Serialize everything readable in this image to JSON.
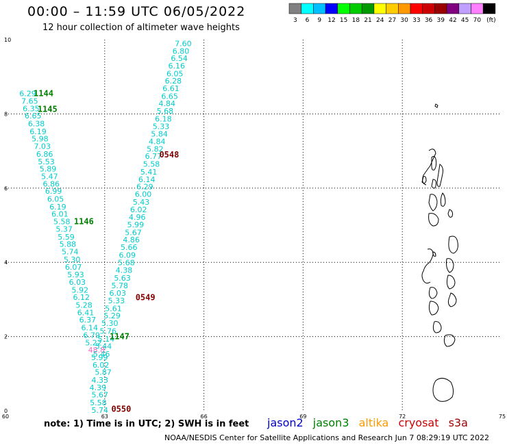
{
  "header": {
    "title": "00:00 – 11:59 UTC 06/05/2022",
    "subtitle": "12 hour collection of altimeter wave heights"
  },
  "colorbar": {
    "unit": "(ft)",
    "bins": [
      {
        "label": "3",
        "color": "#808080"
      },
      {
        "label": "6",
        "color": "#00ffff"
      },
      {
        "label": "9",
        "color": "#00bfff"
      },
      {
        "label": "12",
        "color": "#0000ff"
      },
      {
        "label": "15",
        "color": "#00ff00"
      },
      {
        "label": "18",
        "color": "#00cc00"
      },
      {
        "label": "21",
        "color": "#009900"
      },
      {
        "label": "24",
        "color": "#ffff00"
      },
      {
        "label": "27",
        "color": "#ffcc00"
      },
      {
        "label": "30",
        "color": "#ff9900"
      },
      {
        "label": "33",
        "color": "#ff0000"
      },
      {
        "label": "36",
        "color": "#cc0000"
      },
      {
        "label": "39",
        "color": "#990000"
      },
      {
        "label": "42",
        "color": "#800080"
      },
      {
        "label": "45",
        "color": "#bfa0ff"
      },
      {
        "label": "70",
        "color": "#ff80ff"
      },
      {
        "label": "",
        "color": "#000000"
      }
    ]
  },
  "axes": {
    "x": {
      "min": 60,
      "max": 75,
      "ticks": [
        60,
        63,
        66,
        69,
        72,
        75
      ],
      "tick_labels": [
        "60",
        "63",
        "66",
        "69",
        "72",
        "75"
      ]
    },
    "y": {
      "min": 0,
      "max": 10,
      "ticks": [
        0,
        2,
        4,
        6,
        8,
        10
      ],
      "tick_labels": [
        "0",
        "2",
        "4",
        "6",
        "8",
        "10"
      ]
    },
    "grid": true
  },
  "chart_data": {
    "type": "scatter",
    "tracks": [
      {
        "satellite": "jason3",
        "label": "1144",
        "label_lon": 60.85,
        "label_lat": 8.55,
        "label_color": "#008000",
        "values_color": "#00cccc",
        "points": [
          {
            "lon": 60.42,
            "lat": 8.55,
            "v": "6.29"
          },
          {
            "lon": 60.48,
            "lat": 8.35,
            "v": "7.65"
          },
          {
            "lon": 60.52,
            "lat": 8.15,
            "v": "6.35"
          }
        ]
      },
      {
        "satellite": "jason3",
        "label": "1145",
        "label_lon": 60.97,
        "label_lat": 8.13,
        "label_color": "#008000",
        "values_color": "#00cccc",
        "points": [
          {
            "lon": 60.58,
            "lat": 7.95,
            "v": "6.65"
          },
          {
            "lon": 60.68,
            "lat": 7.74,
            "v": "6.38"
          },
          {
            "lon": 60.73,
            "lat": 7.53,
            "v": "6.19"
          },
          {
            "lon": 60.79,
            "lat": 7.33,
            "v": "5.98"
          },
          {
            "lon": 60.86,
            "lat": 7.13,
            "v": "7.03"
          },
          {
            "lon": 60.93,
            "lat": 6.92,
            "v": "6.86"
          },
          {
            "lon": 60.98,
            "lat": 6.72,
            "v": "5.53"
          },
          {
            "lon": 61.03,
            "lat": 6.52,
            "v": "5.89"
          },
          {
            "lon": 61.08,
            "lat": 6.32,
            "v": "5.47"
          },
          {
            "lon": 61.13,
            "lat": 6.12,
            "v": "6.86"
          },
          {
            "lon": 61.2,
            "lat": 5.92,
            "v": "6.99"
          },
          {
            "lon": 61.26,
            "lat": 5.71,
            "v": "6.05"
          },
          {
            "lon": 61.33,
            "lat": 5.5,
            "v": "6.19"
          },
          {
            "lon": 61.39,
            "lat": 5.3,
            "v": "6.01"
          },
          {
            "lon": 61.45,
            "lat": 5.1,
            "v": "5.58"
          }
        ]
      },
      {
        "satellite": "jason3",
        "label": "1146",
        "label_lon": 62.07,
        "label_lat": 5.1,
        "label_color": "#008000",
        "values_color": "#00cccc",
        "points": [
          {
            "lon": 61.52,
            "lat": 4.9,
            "v": "5.37"
          },
          {
            "lon": 61.58,
            "lat": 4.69,
            "v": "5.59"
          },
          {
            "lon": 61.63,
            "lat": 4.49,
            "v": "5.88"
          },
          {
            "lon": 61.7,
            "lat": 4.29,
            "v": "5.74"
          },
          {
            "lon": 61.76,
            "lat": 4.08,
            "v": "5.30"
          },
          {
            "lon": 61.8,
            "lat": 3.87,
            "v": "6.07"
          },
          {
            "lon": 61.87,
            "lat": 3.67,
            "v": "5.93"
          },
          {
            "lon": 61.92,
            "lat": 3.47,
            "v": "6.03"
          },
          {
            "lon": 62.0,
            "lat": 3.26,
            "v": "5.92"
          },
          {
            "lon": 62.04,
            "lat": 3.06,
            "v": "6.12"
          },
          {
            "lon": 62.12,
            "lat": 2.85,
            "v": "5.28"
          },
          {
            "lon": 62.17,
            "lat": 2.65,
            "v": "6.41"
          },
          {
            "lon": 62.23,
            "lat": 2.45,
            "v": "6.37"
          },
          {
            "lon": 62.29,
            "lat": 2.24,
            "v": "6.14"
          },
          {
            "lon": 62.35,
            "lat": 2.04,
            "v": "6.79"
          }
        ]
      },
      {
        "satellite": "jason3",
        "label": "1147",
        "label_lon": 63.15,
        "label_lat": 2.0,
        "label_color": "#008000",
        "values_color": "#00cccc",
        "points": [
          {
            "lon": 62.41,
            "lat": 1.84,
            "v": "5.22"
          },
          {
            "lon": 62.59,
            "lat": 1.44,
            "v": "5.99"
          },
          {
            "lon": 62.63,
            "lat": 1.24,
            "v": "6.02"
          },
          {
            "lon": 62.7,
            "lat": 1.04,
            "v": "5.87"
          },
          {
            "lon": 62.6,
            "lat": 0.83,
            "v": "4.33"
          },
          {
            "lon": 62.54,
            "lat": 0.63,
            "v": "4.39"
          },
          {
            "lon": 62.6,
            "lat": 0.43,
            "v": "5.67"
          },
          {
            "lon": 62.55,
            "lat": 0.22,
            "v": "5.58"
          },
          {
            "lon": 62.6,
            "lat": 0.02,
            "v": "5.74"
          }
        ]
      },
      {
        "satellite": "altika",
        "label": "",
        "label_lon": 62.4,
        "label_lat": 1.64,
        "label_color": "#ff66cc",
        "values_color": "#ff66cc",
        "points": [
          {
            "lon": 62.5,
            "lat": 1.64,
            "v": "48.8"
          }
        ]
      },
      {
        "satellite": "cryosat",
        "label": "0548",
        "label_lon": 64.65,
        "label_lat": 6.9,
        "label_color": "#800000",
        "values_color": "#00cccc",
        "points": [
          {
            "lon": 65.12,
            "lat": 9.9,
            "v": "7.60"
          },
          {
            "lon": 65.05,
            "lat": 9.7,
            "v": "6.80"
          },
          {
            "lon": 65.0,
            "lat": 9.5,
            "v": "6.54"
          },
          {
            "lon": 64.92,
            "lat": 9.3,
            "v": "6.16"
          },
          {
            "lon": 64.87,
            "lat": 9.09,
            "v": "6.05"
          },
          {
            "lon": 64.82,
            "lat": 8.89,
            "v": "6.28"
          },
          {
            "lon": 64.75,
            "lat": 8.69,
            "v": "6.61"
          },
          {
            "lon": 64.71,
            "lat": 8.48,
            "v": "6.65"
          },
          {
            "lon": 64.63,
            "lat": 8.28,
            "v": "4.84"
          },
          {
            "lon": 64.57,
            "lat": 8.08,
            "v": "5.68"
          },
          {
            "lon": 64.52,
            "lat": 7.87,
            "v": "6.18"
          },
          {
            "lon": 64.45,
            "lat": 7.67,
            "v": "5.33"
          },
          {
            "lon": 64.4,
            "lat": 7.46,
            "v": "5.84"
          },
          {
            "lon": 64.33,
            "lat": 7.26,
            "v": "4.84"
          },
          {
            "lon": 64.27,
            "lat": 7.06,
            "v": "5.82"
          },
          {
            "lon": 64.22,
            "lat": 6.86,
            "v": "6.77"
          },
          {
            "lon": 64.16,
            "lat": 6.65,
            "v": "5.58"
          },
          {
            "lon": 64.08,
            "lat": 6.44,
            "v": "5.41"
          },
          {
            "lon": 64.02,
            "lat": 6.24,
            "v": "6.14"
          },
          {
            "lon": 63.96,
            "lat": 6.04,
            "v": "6.29"
          },
          {
            "lon": 63.91,
            "lat": 5.84,
            "v": "6.00"
          },
          {
            "lon": 63.85,
            "lat": 5.63,
            "v": "5.43"
          },
          {
            "lon": 63.77,
            "lat": 5.42,
            "v": "6.02"
          },
          {
            "lon": 63.73,
            "lat": 5.22,
            "v": "4.96"
          },
          {
            "lon": 63.68,
            "lat": 5.02,
            "v": "5.99"
          },
          {
            "lon": 63.61,
            "lat": 4.81,
            "v": "5.67"
          }
        ]
      },
      {
        "satellite": "cryosat",
        "label": "0549",
        "label_lon": 63.93,
        "label_lat": 3.05,
        "label_color": "#800000",
        "values_color": "#00cccc",
        "points": [
          {
            "lon": 63.55,
            "lat": 4.61,
            "v": "4.86"
          },
          {
            "lon": 63.48,
            "lat": 4.41,
            "v": "5.66"
          },
          {
            "lon": 63.43,
            "lat": 4.2,
            "v": "6.09"
          },
          {
            "lon": 63.4,
            "lat": 3.99,
            "v": "5.68"
          },
          {
            "lon": 63.33,
            "lat": 3.79,
            "v": "4.38"
          },
          {
            "lon": 63.28,
            "lat": 3.58,
            "v": "5.63"
          },
          {
            "lon": 63.2,
            "lat": 3.38,
            "v": "5.78"
          },
          {
            "lon": 63.14,
            "lat": 3.17,
            "v": "6.03"
          },
          {
            "lon": 63.1,
            "lat": 2.97,
            "v": "5.33"
          },
          {
            "lon": 63.01,
            "lat": 2.76,
            "v": "5.61"
          },
          {
            "lon": 62.97,
            "lat": 2.56,
            "v": "5.29"
          },
          {
            "lon": 62.9,
            "lat": 2.36,
            "v": "5.30"
          },
          {
            "lon": 62.85,
            "lat": 2.15,
            "v": "5.76"
          },
          {
            "lon": 62.79,
            "lat": 1.94,
            "v": "5.14"
          },
          {
            "lon": 62.71,
            "lat": 1.74,
            "v": "5.44"
          },
          {
            "lon": 62.65,
            "lat": 1.53,
            "v": "5.46"
          }
        ]
      },
      {
        "satellite": "cryosat",
        "label": "0550",
        "label_lon": 63.2,
        "label_lat": 0.05,
        "label_color": "#800000",
        "values_color": "#00cccc",
        "points": []
      }
    ]
  },
  "note": "note:  1) Time is in UTC;  2) SWH is in feet",
  "legend": {
    "satellites": [
      {
        "name": "jason2",
        "color": "#0000cc"
      },
      {
        "name": "jason3",
        "color": "#008000"
      },
      {
        "name": "altika",
        "color": "#ff9900"
      },
      {
        "name": "cryosat",
        "color": "#cc0000"
      },
      {
        "name": "s3a",
        "color": "#990000"
      }
    ]
  },
  "credit": "NOAA/NESDIS Center for Satellite Applications and Research   Jun  7 08:29:19 UTC 2022"
}
